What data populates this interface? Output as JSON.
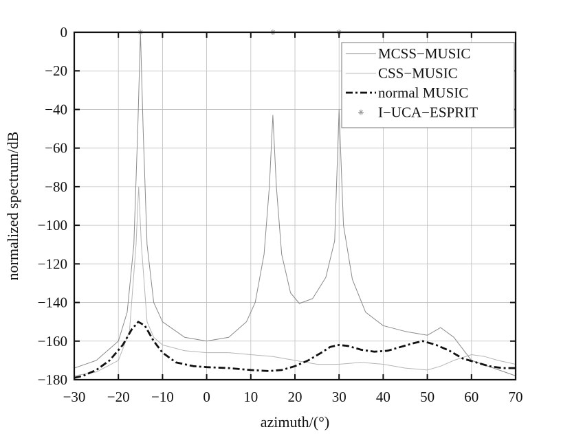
{
  "chart_data": {
    "type": "line",
    "xlabel": "azimuth/(°)",
    "ylabel": "normalized spectrum/dB",
    "xlim": [
      -30,
      70
    ],
    "ylim": [
      -180,
      0
    ],
    "x_ticks": [
      -30,
      -20,
      -10,
      0,
      10,
      20,
      30,
      40,
      50,
      60,
      70
    ],
    "y_ticks": [
      0,
      -20,
      -40,
      -60,
      -80,
      -100,
      -120,
      -140,
      -160,
      -180
    ],
    "x_tick_labels": [
      "−30",
      "−20",
      "−10",
      "0",
      "10",
      "20",
      "30",
      "40",
      "50",
      "60",
      "70"
    ],
    "y_tick_labels": [
      "0",
      "−20",
      "−40",
      "−60",
      "−80",
      "−100",
      "−120",
      "−140",
      "−160",
      "−180"
    ],
    "grid": true,
    "legend_position": "top-right",
    "series": [
      {
        "name": "MCSS−MUSIC",
        "style": "solid-thin",
        "color": "#8a8a8a",
        "points": [
          [
            -30,
            -174
          ],
          [
            -25,
            -170
          ],
          [
            -20,
            -160
          ],
          [
            -18,
            -145
          ],
          [
            -16.5,
            -110
          ],
          [
            -15.6,
            -50
          ],
          [
            -15,
            0
          ],
          [
            -14.4,
            -50
          ],
          [
            -13.5,
            -110
          ],
          [
            -12,
            -140
          ],
          [
            -10,
            -150
          ],
          [
            -5,
            -158
          ],
          [
            0,
            -160
          ],
          [
            5,
            -158
          ],
          [
            9,
            -150
          ],
          [
            11,
            -140
          ],
          [
            13,
            -115
          ],
          [
            14.2,
            -80
          ],
          [
            15,
            -43
          ],
          [
            15.8,
            -80
          ],
          [
            17,
            -115
          ],
          [
            19,
            -135
          ],
          [
            21,
            -140.5
          ],
          [
            24,
            -138
          ],
          [
            27,
            -127
          ],
          [
            29,
            -108
          ],
          [
            30,
            -40
          ],
          [
            31,
            -100
          ],
          [
            33,
            -128
          ],
          [
            36,
            -145
          ],
          [
            40,
            -152
          ],
          [
            45,
            -155
          ],
          [
            50,
            -157
          ],
          [
            53,
            -153
          ],
          [
            56,
            -158
          ],
          [
            60,
            -170
          ],
          [
            65,
            -174
          ],
          [
            70,
            -178
          ]
        ]
      },
      {
        "name": "CSS−MUSIC",
        "style": "solid-thin",
        "color": "#b5b5b5",
        "points": [
          [
            -30,
            -178
          ],
          [
            -25,
            -176
          ],
          [
            -20,
            -170
          ],
          [
            -17.5,
            -155
          ],
          [
            -16,
            -110
          ],
          [
            -15.4,
            -80
          ],
          [
            -14.8,
            -110
          ],
          [
            -13.5,
            -150
          ],
          [
            -12,
            -158
          ],
          [
            -10,
            -162
          ],
          [
            -5,
            -165
          ],
          [
            0,
            -166
          ],
          [
            5,
            -166
          ],
          [
            10,
            -167
          ],
          [
            15,
            -168
          ],
          [
            20,
            -170
          ],
          [
            25,
            -172
          ],
          [
            30,
            -172
          ],
          [
            35,
            -171
          ],
          [
            40,
            -172
          ],
          [
            45,
            -174
          ],
          [
            50,
            -175
          ],
          [
            53,
            -173
          ],
          [
            56,
            -170
          ],
          [
            60,
            -167
          ],
          [
            63,
            -168
          ],
          [
            66,
            -170
          ],
          [
            70,
            -172
          ]
        ]
      },
      {
        "name": "normal MUSIC",
        "style": "dash-dot",
        "color": "#111111",
        "points": [
          [
            -30,
            -179
          ],
          [
            -28,
            -178
          ],
          [
            -25,
            -175
          ],
          [
            -22,
            -170
          ],
          [
            -19,
            -162
          ],
          [
            -17,
            -154
          ],
          [
            -15.5,
            -150
          ],
          [
            -14,
            -152
          ],
          [
            -12,
            -160
          ],
          [
            -10,
            -166
          ],
          [
            -7,
            -171
          ],
          [
            -3,
            -173
          ],
          [
            0,
            -173.5
          ],
          [
            5,
            -174
          ],
          [
            10,
            -175
          ],
          [
            14,
            -175.5
          ],
          [
            17,
            -175
          ],
          [
            20,
            -173
          ],
          [
            23,
            -170
          ],
          [
            26,
            -166
          ],
          [
            28,
            -163
          ],
          [
            30,
            -162
          ],
          [
            32,
            -162.5
          ],
          [
            35,
            -164.5
          ],
          [
            38,
            -165.5
          ],
          [
            41,
            -165
          ],
          [
            44,
            -163
          ],
          [
            47,
            -161
          ],
          [
            49,
            -160
          ],
          [
            52,
            -162
          ],
          [
            55,
            -165
          ],
          [
            58,
            -169
          ],
          [
            61,
            -171
          ],
          [
            64,
            -173
          ],
          [
            67,
            -174
          ],
          [
            70,
            -174
          ]
        ]
      },
      {
        "name": "I−UCA−ESPRIT",
        "style": "markers",
        "color": "#9a9a9a",
        "points": [
          [
            -15,
            0
          ],
          [
            15,
            0
          ],
          [
            30,
            0
          ]
        ]
      }
    ]
  }
}
